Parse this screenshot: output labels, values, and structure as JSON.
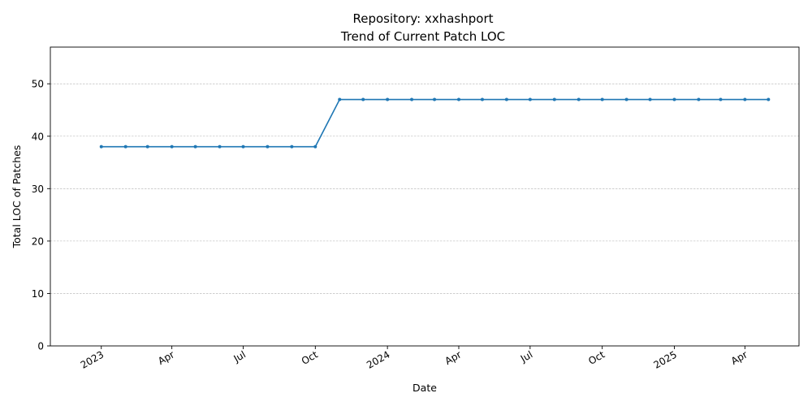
{
  "chart_data": {
    "type": "line",
    "title": "Repository: xxhashport",
    "subtitle": "Trend of Current Patch LOC",
    "xlabel": "Date",
    "ylabel": "Total LOC of Patches",
    "xlim": [
      "2022-10-28",
      "2025-06-09"
    ],
    "ylim": [
      0,
      57
    ],
    "yticks": [
      0,
      10,
      20,
      30,
      40,
      50
    ],
    "xticks": [
      {
        "date": "2023-01-01",
        "label": "2023"
      },
      {
        "date": "2023-04-01",
        "label": "Apr"
      },
      {
        "date": "2023-07-01",
        "label": "Jul"
      },
      {
        "date": "2023-10-01",
        "label": "Oct"
      },
      {
        "date": "2024-01-01",
        "label": "2024"
      },
      {
        "date": "2024-04-01",
        "label": "Apr"
      },
      {
        "date": "2024-07-01",
        "label": "Jul"
      },
      {
        "date": "2024-10-01",
        "label": "Oct"
      },
      {
        "date": "2025-01-01",
        "label": "2025"
      },
      {
        "date": "2025-04-01",
        "label": "Apr"
      }
    ],
    "grid": "y",
    "color": "#1f77b4",
    "x": [
      "2023-01-01",
      "2023-02-01",
      "2023-03-01",
      "2023-04-01",
      "2023-05-01",
      "2023-06-01",
      "2023-07-01",
      "2023-08-01",
      "2023-09-01",
      "2023-10-01",
      "2023-11-01",
      "2023-12-01",
      "2024-01-01",
      "2024-02-01",
      "2024-03-01",
      "2024-04-01",
      "2024-05-01",
      "2024-06-01",
      "2024-07-01",
      "2024-08-01",
      "2024-09-01",
      "2024-10-01",
      "2024-11-01",
      "2024-12-01",
      "2025-01-01",
      "2025-02-01",
      "2025-03-01",
      "2025-04-01",
      "2025-05-01"
    ],
    "y": [
      38,
      38,
      38,
      38,
      38,
      38,
      38,
      38,
      38,
      38,
      47,
      47,
      47,
      47,
      47,
      47,
      47,
      47,
      47,
      47,
      47,
      47,
      47,
      47,
      47,
      47,
      47,
      47,
      47
    ]
  }
}
